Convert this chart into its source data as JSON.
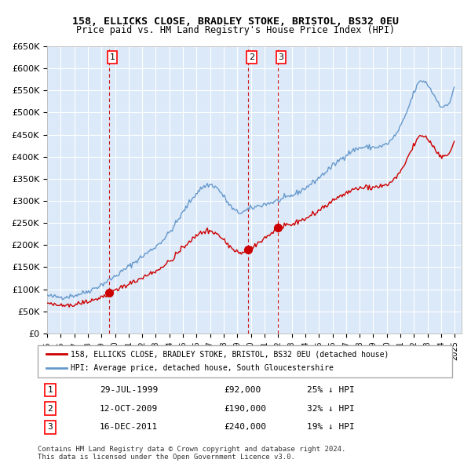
{
  "title1": "158, ELLICKS CLOSE, BRADLEY STOKE, BRISTOL, BS32 0EU",
  "title2": "Price paid vs. HM Land Registry's House Price Index (HPI)",
  "legend_red": "158, ELLICKS CLOSE, BRADLEY STOKE, BRISTOL, BS32 0EU (detached house)",
  "legend_blue": "HPI: Average price, detached house, South Gloucestershire",
  "transaction1_date": "29-JUL-1999",
  "transaction1_price": 92000,
  "transaction1_label": "25% ↓ HPI",
  "transaction2_date": "12-OCT-2009",
  "transaction2_price": 190000,
  "transaction2_label": "32% ↓ HPI",
  "transaction3_date": "16-DEC-2011",
  "transaction3_price": 240000,
  "transaction3_label": "19% ↓ HPI",
  "footer1": "Contains HM Land Registry data © Crown copyright and database right 2024.",
  "footer2": "This data is licensed under the Open Government Licence v3.0.",
  "ylim": [
    0,
    650000
  ],
  "ytick_step": 50000,
  "bg_color": "#dce9f8",
  "plot_bg": "#dce9f8",
  "grid_color": "#ffffff",
  "red_color": "#cc0000",
  "blue_color": "#6699cc"
}
